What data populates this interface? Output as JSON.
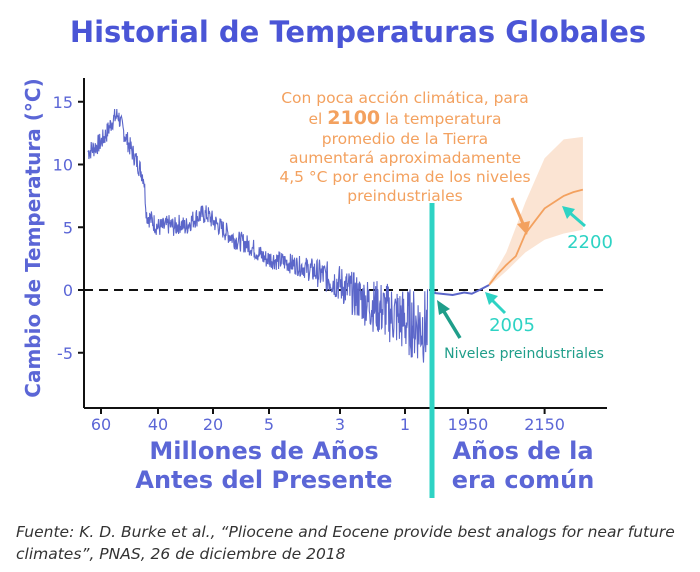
{
  "chart_data": {
    "type": "line",
    "title": "Historial de Temperaturas Globales",
    "ylabel": "Cambio de Temperatura (°C)",
    "xlabel_left": [
      "Millones de Años",
      "Antes del Presente"
    ],
    "xlabel_right": [
      "Años de la",
      "era común"
    ],
    "ylim": [
      -9.5,
      17
    ],
    "yticks": [
      "15",
      "10",
      "5",
      "0",
      "-5"
    ],
    "ytick_values": [
      15,
      10,
      5,
      0,
      -5
    ],
    "xticks_left": [
      "60",
      "40",
      "20",
      "5",
      "3",
      "1"
    ],
    "xticks_right": [
      "1950",
      "2150"
    ],
    "baseline": 0,
    "grid": false,
    "series": [
      {
        "color": "#5b66c9",
        "points": [
          [
            63,
            11
          ],
          [
            61,
            11.5
          ],
          [
            60,
            11.8
          ],
          [
            58,
            12.5
          ],
          [
            56,
            13.5
          ],
          [
            54,
            14
          ],
          [
            53,
            13.2
          ],
          [
            51,
            12
          ],
          [
            49,
            11
          ],
          [
            47,
            10
          ],
          [
            45,
            9
          ],
          [
            44,
            6
          ],
          [
            42,
            5.5
          ],
          [
            40,
            5
          ],
          [
            38,
            5
          ],
          [
            36,
            5.2
          ],
          [
            34,
            5
          ],
          [
            32,
            5.3
          ],
          [
            30,
            5
          ],
          [
            28,
            5.5
          ],
          [
            26,
            5.8
          ],
          [
            24,
            6
          ],
          [
            22,
            6
          ],
          [
            20,
            5.5
          ],
          [
            18,
            5
          ],
          [
            16,
            4.5
          ],
          [
            14,
            4
          ],
          [
            12,
            3.8
          ],
          [
            10,
            3.5
          ],
          [
            8,
            3
          ],
          [
            6,
            2.5
          ],
          [
            5,
            2.5
          ],
          [
            4.5,
            2.2
          ],
          [
            4,
            1.8
          ],
          [
            3.5,
            1.2
          ],
          [
            3,
            0.5
          ],
          [
            2.5,
            -0.5
          ],
          [
            2,
            -1.2
          ],
          [
            1.5,
            -1.8
          ],
          [
            1.2,
            -2.2
          ],
          [
            1,
            -2.5
          ],
          [
            0.8,
            -3
          ]
        ]
      },
      {
        "color": "#5b66c9",
        "points": [
          [
            1850,
            -0.2
          ],
          [
            1880,
            -0.3
          ],
          [
            1910,
            -0.4
          ],
          [
            1940,
            -0.2
          ],
          [
            1960,
            -0.3
          ],
          [
            1980,
            0
          ],
          [
            2005,
            0.4
          ]
        ]
      },
      {
        "color": "#f3a15f",
        "points": [
          [
            2005,
            0.4
          ],
          [
            2025,
            1.2
          ],
          [
            2050,
            2
          ],
          [
            2075,
            2.7
          ],
          [
            2100,
            4.5
          ],
          [
            2125,
            5.5
          ],
          [
            2150,
            6.5
          ],
          [
            2175,
            7
          ],
          [
            2200,
            7.5
          ],
          [
            2225,
            7.8
          ],
          [
            2250,
            8
          ]
        ]
      }
    ],
    "uncertainty_band": {
      "color": "#fbe4d3",
      "upper": [
        [
          2005,
          0.6
        ],
        [
          2050,
          3
        ],
        [
          2100,
          7
        ],
        [
          2150,
          10.5
        ],
        [
          2200,
          12
        ],
        [
          2250,
          12.2
        ]
      ],
      "lower": [
        [
          2005,
          0.3
        ],
        [
          2050,
          1.5
        ],
        [
          2100,
          3
        ],
        [
          2150,
          4
        ],
        [
          2200,
          4.5
        ],
        [
          2250,
          4.8
        ]
      ]
    },
    "annotations": {
      "projection_text": [
        "Con poca acción climática, para",
        "el ",
        "2100",
        " la temperatura",
        "promedio de la Tierra",
        "aumentará aproximadamente",
        "4,5 °C por encima de los niveles",
        "preindustriales"
      ],
      "label_2200": "2200",
      "label_2005": "2005",
      "label_preindustrial": "Niveles preindustriales"
    },
    "colors": {
      "title": "#4a55d6",
      "axis_labels": "#5b66d6",
      "history": "#5b66c9",
      "projection": "#f3a15f",
      "band": "#fbe4d3",
      "divider": "#2ed3c4",
      "teal_labels": "#2ed3c4",
      "dark_teal": "#1f9e8a"
    }
  },
  "source_text": "Fuente: K. D. Burke et al., “Pliocene and Eocene provide best analogs for near future climates”, PNAS, 26 de diciembre de 2018"
}
